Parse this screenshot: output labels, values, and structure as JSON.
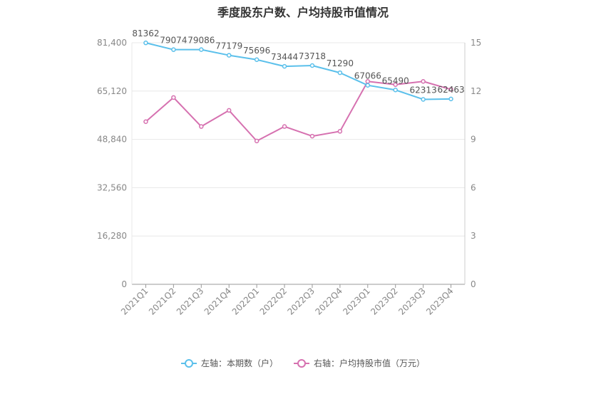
{
  "chart_data": {
    "type": "line",
    "title": "季度股东户数、户均持股市值情况",
    "categories": [
      "2021Q1",
      "2021Q2",
      "2021Q3",
      "2021Q4",
      "2022Q1",
      "2022Q2",
      "2022Q3",
      "2022Q4",
      "2023Q1",
      "2023Q2",
      "2023Q3",
      "2023Q4"
    ],
    "left_axis": {
      "min": 0,
      "max": 81400,
      "ticks": [
        0,
        16280,
        32560,
        48840,
        65120,
        81400
      ],
      "tick_labels": [
        "0",
        "16,280",
        "32,560",
        "48,840",
        "65,120",
        "81,400"
      ]
    },
    "right_axis": {
      "min": 0,
      "max": 15,
      "ticks": [
        0,
        3,
        6,
        9,
        12,
        15
      ],
      "tick_labels": [
        "0",
        "3",
        "6",
        "9",
        "12",
        "15"
      ]
    },
    "series": [
      {
        "name": "左轴：本期数（户）",
        "axis": "left",
        "color": "#5bc0eb",
        "values": [
          81362,
          79074,
          79086,
          77179,
          75696,
          73444,
          73718,
          71290,
          67066,
          65490,
          62313,
          62463
        ],
        "labels": [
          "81362",
          "79074",
          "79086",
          "77179",
          "75696",
          "73444",
          "73718",
          "71290",
          "67066",
          "65490",
          "62313",
          "62463"
        ]
      },
      {
        "name": "右轴：户均持股市值（万元）",
        "axis": "right",
        "color": "#d671b0",
        "values": [
          10.1,
          11.6,
          9.8,
          10.8,
          8.9,
          9.8,
          9.2,
          9.5,
          12.6,
          12.4,
          12.6,
          12.1
        ]
      }
    ],
    "grid": true,
    "legend_position": "bottom"
  }
}
